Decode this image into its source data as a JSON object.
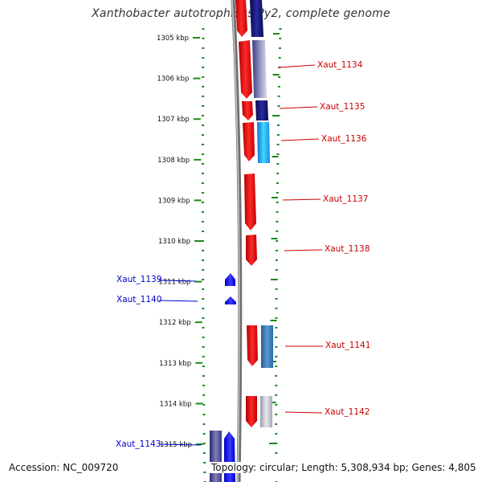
{
  "title": "Xanthobacter autotrophicus Py2, complete genome",
  "footer": {
    "accession": "Accession: NC_009720",
    "summary": "Topology: circular; Length: 5,308,934 bp; Genes: 4,805"
  },
  "colors": {
    "tick": "#1a8a1a",
    "label_right": "#cc0000",
    "label_left": "#0000cc",
    "backbone": "#888888",
    "gene_red": "#ff1a1a",
    "gene_navy": "#1a1a7a",
    "gene_cyan": "#22aaff",
    "gene_steel": "#3a78b8",
    "gene_gray": "#b8b8c8",
    "gene_blue": "#0000ff"
  },
  "ruler": {
    "unit": "kbp",
    "ticks": [
      1305,
      1306,
      1307,
      1308,
      1309,
      1310,
      1311,
      1312,
      1313,
      1314,
      1315
    ]
  },
  "genes_right": [
    {
      "name": "Xaut_1134",
      "start_kbp": 1305.1,
      "end_kbp": 1306.5,
      "color": "gray-violet"
    },
    {
      "name": "Xaut_1135",
      "start_kbp": 1306.5,
      "end_kbp": 1307.0,
      "color": "navy"
    },
    {
      "name": "Xaut_1136",
      "start_kbp": 1307.0,
      "end_kbp": 1308.1,
      "color": "cyan"
    },
    {
      "name": "Xaut_1137",
      "start_kbp": 1308.3,
      "end_kbp": 1309.7,
      "color": "red"
    },
    {
      "name": "Xaut_1138",
      "start_kbp": 1309.8,
      "end_kbp": 1310.6,
      "color": "red"
    },
    {
      "name": "Xaut_1141",
      "start_kbp": 1312.1,
      "end_kbp": 1313.2,
      "color": "steel"
    },
    {
      "name": "Xaut_1142",
      "start_kbp": 1313.9,
      "end_kbp": 1314.6,
      "color": "gray"
    }
  ],
  "genes_left": [
    {
      "name": "Xaut_1139",
      "start_kbp": 1310.8,
      "end_kbp": 1311.1
    },
    {
      "name": "Xaut_1140",
      "start_kbp": 1311.4,
      "end_kbp": 1311.6
    },
    {
      "name": "Xaut_1143",
      "start_kbp": 1314.7,
      "end_kbp": 1315.5
    }
  ]
}
